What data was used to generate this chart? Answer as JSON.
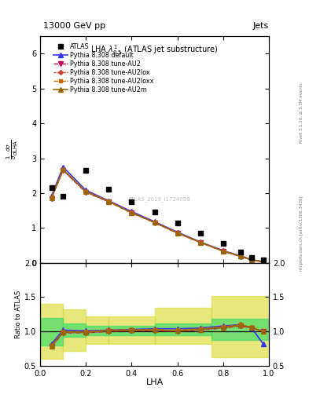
{
  "title_top": "13000 GeV pp",
  "title_right": "Jets",
  "plot_title": "LHA $\\lambda^{1}_{0.5}$ (ATLAS jet substructure)",
  "xlabel": "LHA",
  "ylabel_main": "$\\frac{1}{\\sigma}\\frac{d\\sigma}{d\\mathrm{LHA}}$",
  "ylabel_ratio": "Ratio to ATLAS",
  "right_label1": "Rivet 3.1.10, ≥ 3.3M events",
  "right_label2": "mcplots.cern.ch [arXiv:1306.3436]",
  "watermark": "ATLAS_2019_I1724098",
  "atlas_x": [
    0.05,
    0.1,
    0.2,
    0.3,
    0.4,
    0.5,
    0.6,
    0.7,
    0.8,
    0.875,
    0.925,
    0.975
  ],
  "atlas_y": [
    2.15,
    1.9,
    2.65,
    2.1,
    1.75,
    1.45,
    1.15,
    0.85,
    0.55,
    0.3,
    0.15,
    0.08
  ],
  "pythia_x": [
    0.05,
    0.1,
    0.2,
    0.3,
    0.4,
    0.5,
    0.6,
    0.7,
    0.8,
    0.875,
    0.925,
    0.975
  ],
  "pythia_default_y": [
    1.92,
    2.75,
    2.08,
    1.78,
    1.47,
    1.18,
    0.88,
    0.6,
    0.35,
    0.2,
    0.09,
    0.03
  ],
  "pythia_AU2_y": [
    1.85,
    2.65,
    2.02,
    1.75,
    1.43,
    1.15,
    0.85,
    0.58,
    0.33,
    0.18,
    0.08,
    0.03
  ],
  "pythia_AU2lox_y": [
    1.87,
    2.67,
    2.04,
    1.76,
    1.44,
    1.16,
    0.86,
    0.59,
    0.34,
    0.19,
    0.09,
    0.03
  ],
  "pythia_AU2loxx_y": [
    1.88,
    2.68,
    2.05,
    1.77,
    1.44,
    1.16,
    0.86,
    0.59,
    0.34,
    0.19,
    0.09,
    0.03
  ],
  "pythia_AU2m_y": [
    1.87,
    2.67,
    2.04,
    1.76,
    1.44,
    1.16,
    0.86,
    0.59,
    0.34,
    0.19,
    0.09,
    0.03
  ],
  "ratio_x": [
    0.05,
    0.1,
    0.2,
    0.3,
    0.4,
    0.5,
    0.6,
    0.7,
    0.8,
    0.875,
    0.925,
    0.975
  ],
  "ratio_default": [
    0.82,
    1.02,
    1.01,
    1.02,
    1.03,
    1.04,
    1.04,
    1.05,
    1.08,
    1.1,
    1.05,
    0.82
  ],
  "ratio_AU2": [
    0.78,
    0.98,
    0.98,
    1.0,
    1.01,
    1.01,
    1.0,
    1.02,
    1.05,
    1.08,
    1.05,
    1.0
  ],
  "ratio_AU2lox": [
    0.79,
    0.99,
    0.99,
    1.01,
    1.02,
    1.02,
    1.01,
    1.03,
    1.06,
    1.09,
    1.06,
    1.0
  ],
  "ratio_AU2loxx": [
    0.8,
    1.0,
    1.0,
    1.02,
    1.03,
    1.03,
    1.02,
    1.04,
    1.07,
    1.1,
    1.06,
    1.0
  ],
  "ratio_AU2m": [
    0.79,
    0.99,
    0.99,
    1.01,
    1.02,
    1.02,
    1.01,
    1.03,
    1.06,
    1.09,
    1.06,
    1.0
  ],
  "band_edges": [
    0.0,
    0.1,
    0.2,
    0.3,
    0.5,
    0.75,
    1.0
  ],
  "green_lo": [
    0.8,
    0.92,
    0.95,
    0.95,
    0.95,
    0.88,
    0.88
  ],
  "green_hi": [
    1.2,
    1.12,
    1.08,
    1.08,
    1.12,
    1.18,
    1.18
  ],
  "yellow_lo": [
    0.6,
    0.72,
    0.82,
    0.82,
    0.82,
    0.62,
    0.62
  ],
  "yellow_hi": [
    1.4,
    1.32,
    1.22,
    1.22,
    1.35,
    1.52,
    1.52
  ],
  "color_default": "#3333ff",
  "color_AU2": "#cc0055",
  "color_AU2lox": "#cc4433",
  "color_AU2loxx": "#cc6600",
  "color_AU2m": "#996600",
  "ylim_main": [
    0,
    6.5
  ],
  "ylim_ratio": [
    0.5,
    2.0
  ],
  "green_color": "#44dd66",
  "yellow_color": "#dddd44"
}
